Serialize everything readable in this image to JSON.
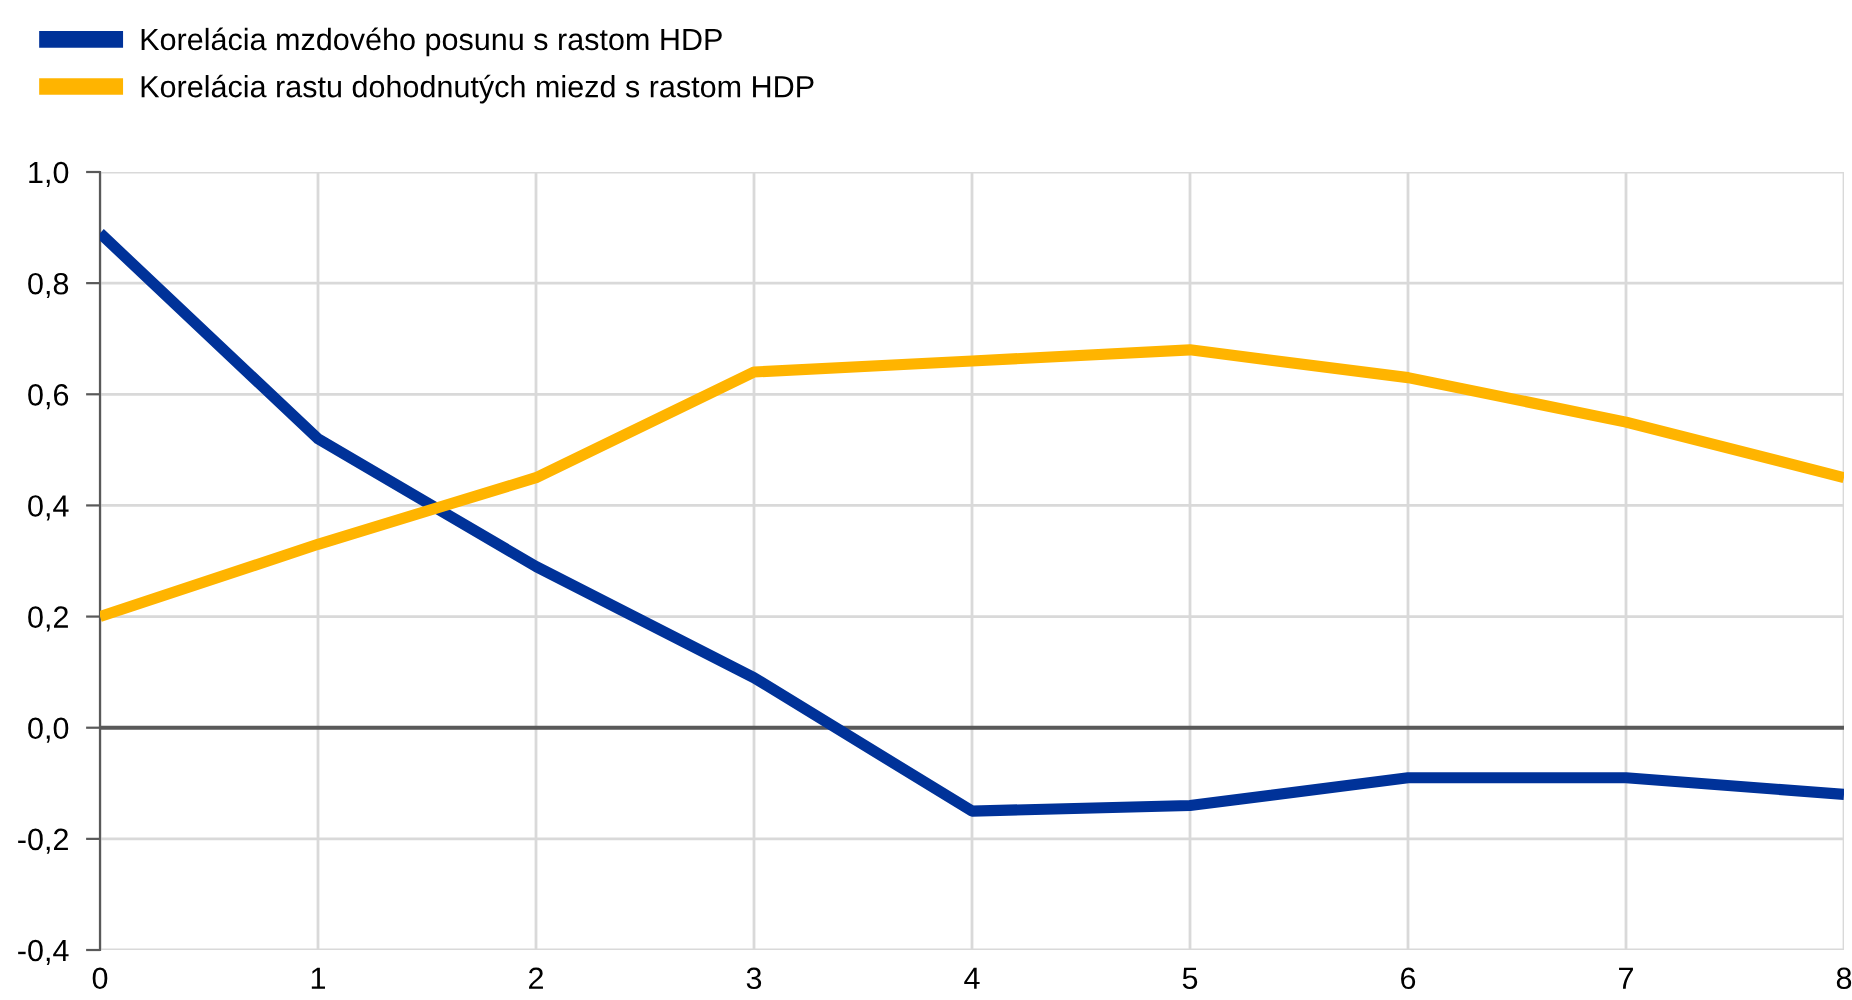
{
  "chart_data": {
    "type": "line",
    "x": [
      0,
      1,
      2,
      3,
      4,
      5,
      6,
      7,
      8
    ],
    "series": [
      {
        "name": "Korelácia mzdového posunu s rastom HDP",
        "color": "#003299",
        "values": [
          0.89,
          0.52,
          0.29,
          0.09,
          -0.15,
          -0.14,
          -0.09,
          -0.09,
          -0.12
        ]
      },
      {
        "name": "Korelácia rastu dohodnutých miezd s rastom HDP",
        "color": "#ffb400",
        "values": [
          0.2,
          0.33,
          0.45,
          0.64,
          0.66,
          0.68,
          0.63,
          0.55,
          0.45
        ]
      }
    ],
    "xlim": [
      0,
      8
    ],
    "xticks": [
      0,
      1,
      2,
      3,
      4,
      5,
      6,
      7,
      8
    ],
    "ylim": [
      -0.4,
      1.0
    ],
    "yticks": [
      {
        "value": -0.4,
        "label": "-0,4"
      },
      {
        "value": -0.2,
        "label": "-0,2"
      },
      {
        "value": 0,
        "label": "0,0"
      },
      {
        "value": 0.2,
        "label": "0,2"
      },
      {
        "value": 0.4,
        "label": "0,4"
      },
      {
        "value": 0.6,
        "label": "0,6"
      },
      {
        "value": 0.8,
        "label": "0,8"
      },
      {
        "value": 1.0,
        "label": "1,0"
      }
    ],
    "ref_lines": [
      {
        "axis": "y",
        "value": 0,
        "color": "#595959"
      }
    ],
    "grid": true,
    "legend": "top left",
    "line_style": "solid",
    "marker": "none"
  }
}
